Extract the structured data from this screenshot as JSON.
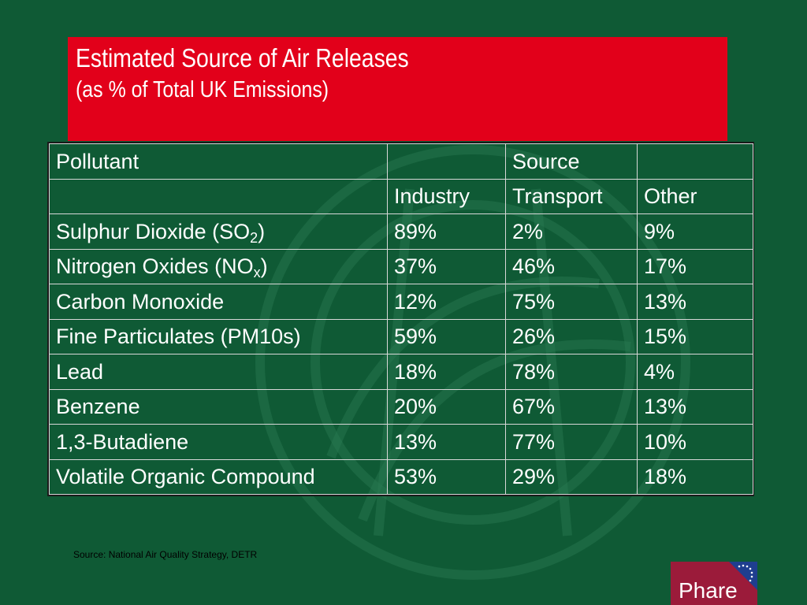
{
  "title": {
    "line1": "Estimated Source of Air Releases",
    "line2": "(as % of Total UK Emissions)"
  },
  "table": {
    "header_row1": [
      "Pollutant",
      "",
      "Source",
      ""
    ],
    "header_row2": [
      "",
      "Industry",
      "Transport",
      "Other"
    ],
    "rows": [
      {
        "pollutant": "Sulphur Dioxide (SO",
        "sub": "2",
        "suffix": ")",
        "industry": "89%",
        "transport": "2%",
        "other": "9%"
      },
      {
        "pollutant": "Nitrogen Oxides (NO",
        "sub": "x",
        "suffix": ")",
        "industry": "37%",
        "transport": "46%",
        "other": "17%"
      },
      {
        "pollutant": "Carbon Monoxide",
        "industry": "12%",
        "transport": "75%",
        "other": "13%"
      },
      {
        "pollutant": "Fine Particulates (PM10s)",
        "industry": "59%",
        "transport": "26%",
        "other": "15%"
      },
      {
        "pollutant": "Lead",
        "industry": "18%",
        "transport": "78%",
        "other": "4%"
      },
      {
        "pollutant": "Benzene",
        "industry": "20%",
        "transport": "67%",
        "other": "13%"
      },
      {
        "pollutant": "1,3-Butadiene",
        "industry": "13%",
        "transport": "77%",
        "other": "10%"
      },
      {
        "pollutant": "Volatile Organic Compound",
        "industry": "53%",
        "transport": "29%",
        "other": "18%"
      }
    ]
  },
  "source_note": "Source: National Air Quality Strategy, DETR",
  "logo": {
    "text": "Phare",
    "icon": "eu-flag-icon"
  },
  "colors": {
    "background": "#0f5a35",
    "title_box": "#e2001a",
    "logo_box": "#9b1b3a",
    "flag": "#1f3e8f",
    "star": "#ffffff"
  }
}
